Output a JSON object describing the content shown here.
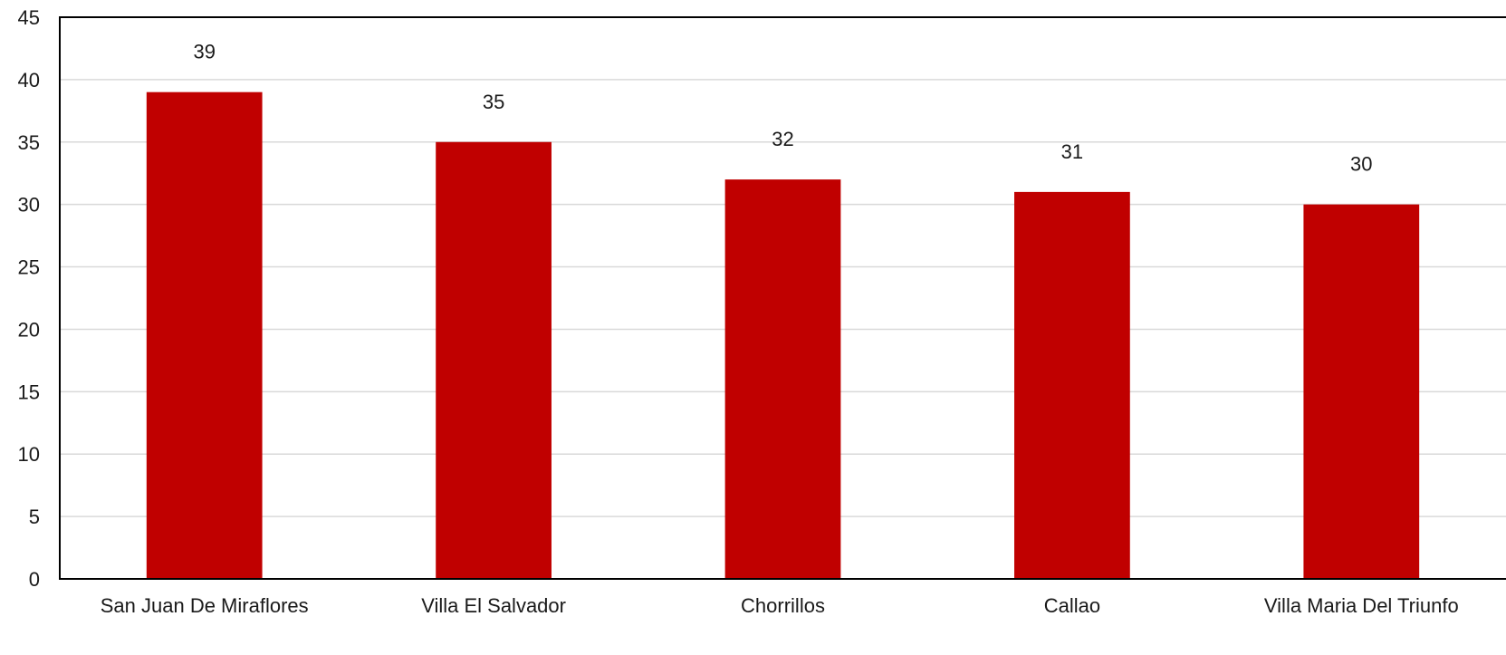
{
  "chart_data": {
    "type": "bar",
    "title": "",
    "xlabel": "",
    "ylabel": "",
    "categories": [
      "San Juan De Miraflores",
      "Villa El Salvador",
      "Chorrillos",
      "Callao",
      "Villa Maria Del Triunfo"
    ],
    "values": [
      39,
      35,
      32,
      31,
      30
    ],
    "ylim": [
      0,
      45
    ],
    "yticks": [
      0,
      5,
      10,
      15,
      20,
      25,
      30,
      35,
      40,
      45
    ],
    "grid": true,
    "legend": "none",
    "bar_color": "#c00000",
    "data_labels": true
  }
}
